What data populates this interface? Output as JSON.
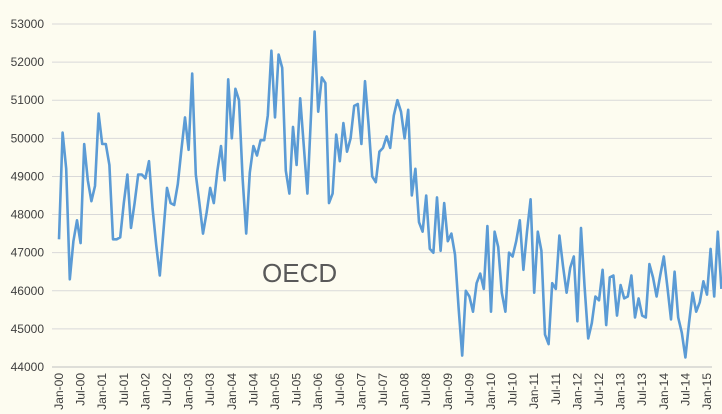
{
  "chart_data": {
    "type": "line",
    "title": "",
    "xlabel": "",
    "ylabel": "",
    "annotation": "OECD",
    "ylim": [
      44000,
      53000
    ],
    "y_ticks": [
      44000,
      45000,
      46000,
      47000,
      48000,
      49000,
      50000,
      51000,
      52000,
      53000
    ],
    "x_ticks": [
      "Jan-00",
      "Jul-00",
      "Jan-01",
      "Jul-01",
      "Jan-02",
      "Jul-02",
      "Jan-03",
      "Jul-03",
      "Jan-04",
      "Jul-04",
      "Jan-05",
      "Jul-05",
      "Jan-06",
      "Jul-06",
      "Jan-07",
      "Jul-07",
      "Jan-08",
      "Jul-08",
      "Jan-09",
      "Jul-09",
      "Jan-10",
      "Jul-10",
      "Jan-11",
      "Jul-11",
      "Jan-12",
      "Jul-12",
      "Jan-13",
      "Jul-13",
      "Jan-14",
      "Jul-14",
      "Jan-15"
    ],
    "x_start": "Jan-00",
    "x_step": "1 month",
    "grid": true,
    "legend": "none",
    "series": [
      {
        "color": "#5b9bd5",
        "values": [
          47350,
          50150,
          49200,
          46300,
          47300,
          47850,
          47250,
          49850,
          48900,
          48350,
          48750,
          50650,
          49850,
          49850,
          49300,
          47350,
          47350,
          47400,
          48300,
          49050,
          47650,
          48300,
          49050,
          49050,
          48950,
          49400,
          48150,
          47200,
          46400,
          47550,
          48700,
          48300,
          48250,
          48800,
          49700,
          50550,
          49700,
          51700,
          49050,
          48300,
          47500,
          48050,
          48700,
          48300,
          49150,
          49800,
          48900,
          51550,
          50000,
          51300,
          51000,
          48950,
          47500,
          49100,
          49800,
          49550,
          49950,
          49950,
          50600,
          52300,
          50550,
          52200,
          51850,
          49150,
          48550,
          50300,
          49300,
          51050,
          49800,
          48550,
          50600,
          52800,
          50700,
          51600,
          51450,
          48300,
          48550,
          50100,
          49400,
          50400,
          49650,
          50000,
          50850,
          50900,
          49850,
          51500,
          50350,
          49000,
          48850,
          49650,
          49750,
          50050,
          49750,
          50600,
          51000,
          50700,
          50000,
          50750,
          48500,
          49200,
          47800,
          47550,
          48500,
          47100,
          47000,
          48450,
          47050,
          48300,
          47300,
          47500,
          46950,
          45550,
          44300,
          46000,
          45850,
          45450,
          46200,
          46450,
          46050,
          47700,
          45450,
          47550,
          47150,
          45950,
          45450,
          47000,
          46900,
          47300,
          47850,
          46550,
          47550,
          48400,
          45950,
          47550,
          47050,
          44850,
          44600,
          46200,
          46050,
          47450,
          46650,
          45950,
          46600,
          46900,
          45200,
          47650,
          46100,
          44750,
          45150,
          45850,
          45750,
          46550,
          45100,
          46350,
          46400,
          45350,
          46150,
          45800,
          45850,
          46400,
          45300,
          45800,
          45350,
          45300,
          46700,
          46350,
          45850,
          46400,
          46900,
          46100,
          45250,
          46500,
          45300,
          44900,
          44250,
          45150,
          45950,
          45450,
          45700,
          46250,
          45900,
          47100,
          45850,
          47550,
          46050
        ]
      }
    ]
  }
}
